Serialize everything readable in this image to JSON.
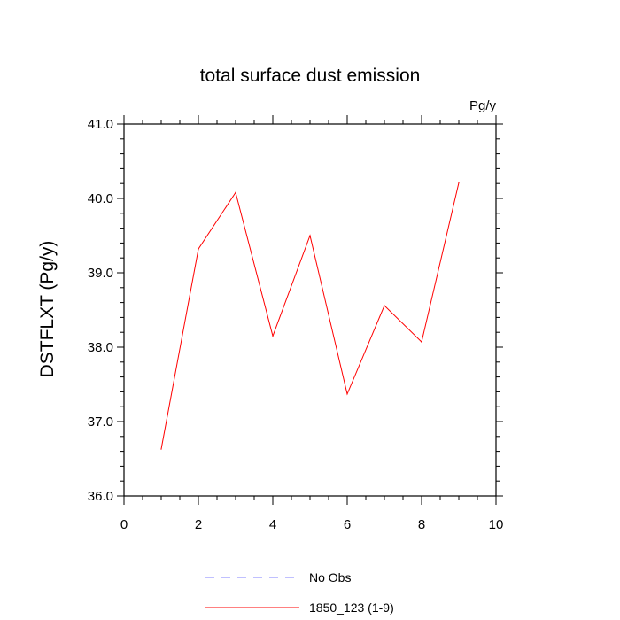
{
  "chart_data": {
    "type": "line",
    "title": "total surface dust emission",
    "units_label": "Pg/y",
    "ylabel": "DSTFLXT  (Pg/y)",
    "xlabel": "",
    "xlim": [
      0,
      10
    ],
    "ylim": [
      36.0,
      41.0
    ],
    "x_ticks": [
      "0",
      "2",
      "4",
      "6",
      "8",
      "10"
    ],
    "y_ticks": [
      "36.0",
      "37.0",
      "38.0",
      "39.0",
      "40.0",
      "41.0"
    ],
    "grid": false,
    "legend_position": "bottom",
    "series": [
      {
        "name": "1850_123 (1-9)",
        "color": "#ff0000",
        "style": "solid",
        "x": [
          1,
          2,
          3,
          4,
          5,
          6,
          7,
          8,
          9
        ],
        "y": [
          36.63,
          39.32,
          40.08,
          38.15,
          39.5,
          37.37,
          38.56,
          38.07,
          40.21
        ]
      },
      {
        "name": "No Obs",
        "color": "#8080ff",
        "style": "dashed",
        "x": [],
        "y": []
      }
    ]
  }
}
